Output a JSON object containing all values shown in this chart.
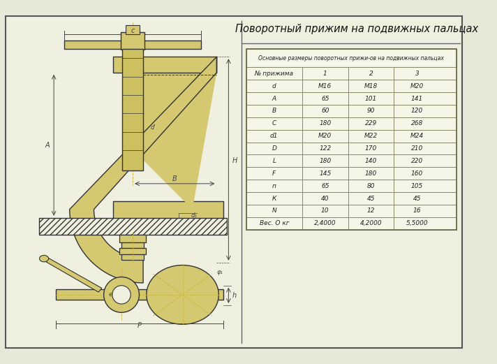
{
  "title": "Поворотный прижим на подвижных пальцах",
  "bg_color": "#e8e8d8",
  "border_color": "#555555",
  "line_color": "#333333",
  "dim_color": "#444444",
  "table_header": "Основные размеры поворотных прижи-ов на подвижных пальцах",
  "table_col0": [
    "№ прижима",
    "d",
    "A",
    "B",
    "C",
    "d1",
    "D",
    "L",
    "F",
    "п",
    "К",
    "N",
    "Вес. О кг"
  ],
  "table_col1": [
    "1",
    "М16",
    "65",
    "60",
    "180",
    "М20",
    "122",
    "180",
    "145",
    "65",
    "40",
    "10",
    "2,4000"
  ],
  "table_col2": [
    "2",
    "М18",
    "101",
    "90",
    "229",
    "М22",
    "170",
    "140",
    "180",
    "80",
    "45",
    "12",
    "4,2000"
  ],
  "table_col3": [
    "3",
    "М20",
    "141",
    "120",
    "268",
    "М24",
    "210",
    "220",
    "160",
    "105",
    "45",
    "16",
    "5,5000"
  ],
  "yellow_color": "#c8b840",
  "light_bg": "#f0f0e0"
}
